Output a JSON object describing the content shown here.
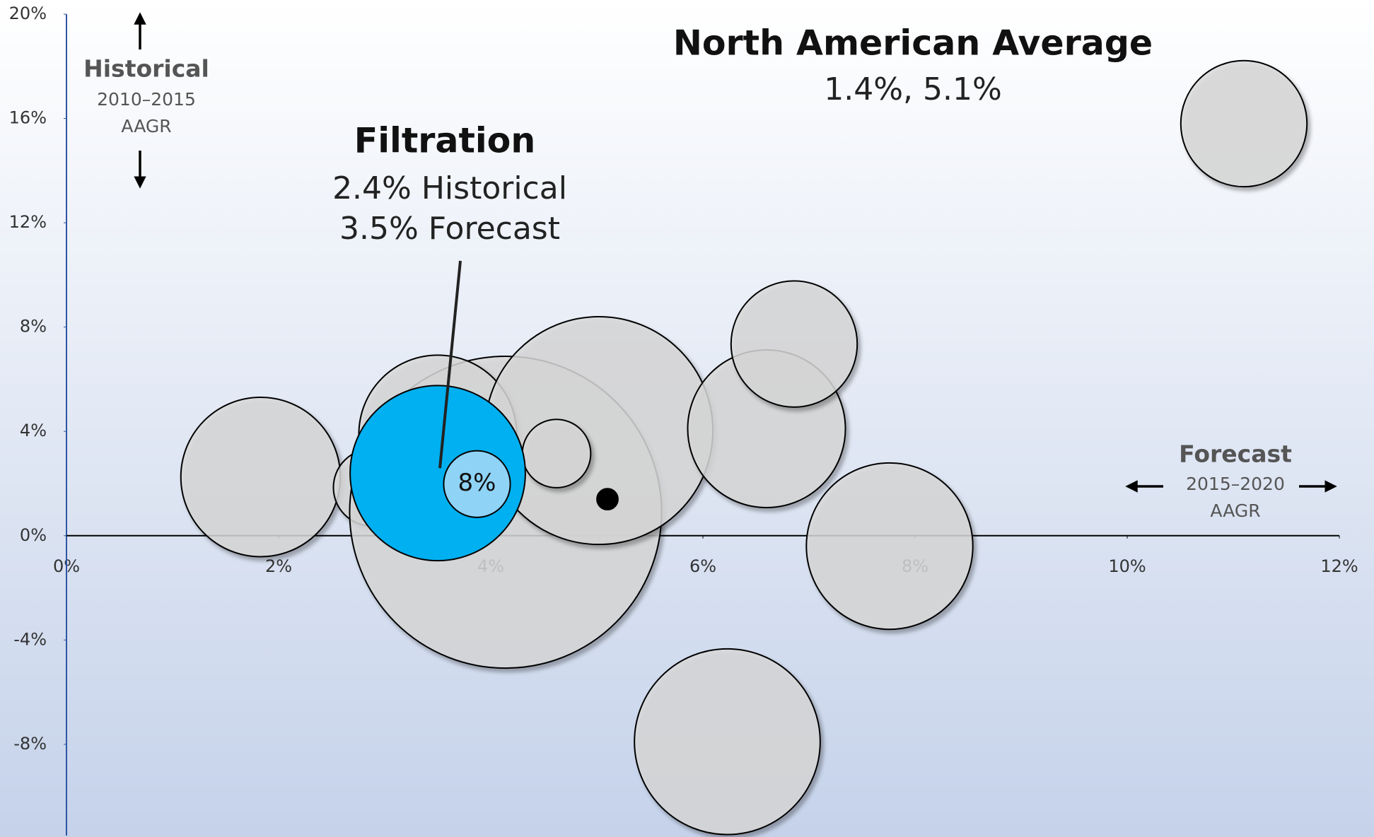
{
  "chart_data": {
    "type": "bubble",
    "xlim": [
      0,
      12
    ],
    "xticks": [
      {
        "value": 0,
        "label": "0%"
      },
      {
        "value": 2,
        "label": "2%"
      },
      {
        "value": 4,
        "label": "4%"
      },
      {
        "value": 6,
        "label": "6%"
      },
      {
        "value": 8,
        "label": "8%"
      },
      {
        "value": 10,
        "label": "10%"
      },
      {
        "value": 12,
        "label": "12%"
      }
    ],
    "ylim": [
      -11.5,
      20
    ],
    "yticks": [
      {
        "value": 20,
        "label": "20%"
      },
      {
        "value": 16,
        "label": "16%"
      },
      {
        "value": 12,
        "label": "12%"
      },
      {
        "value": 8,
        "label": "8%"
      },
      {
        "value": 4,
        "label": "4%"
      },
      {
        "value": 0,
        "label": "0%"
      },
      {
        "value": -4,
        "label": "-4%"
      },
      {
        "value": -8,
        "label": "-8%"
      }
    ],
    "series": [
      {
        "color": "#d9d9d9",
        "x": [
          1.83,
          2.88,
          4.14,
          3.5,
          5.02,
          4.62,
          6.6,
          6.86,
          7.76,
          6.23,
          11.1
        ],
        "values": [
          2.25,
          1.85,
          0.9,
          3.9,
          4.03,
          3.15,
          4.1,
          7.35,
          -0.4,
          -7.9,
          15.8
        ],
        "sizes": [
          9.1,
          4.4,
          17.8,
          9.0,
          13.0,
          3.9,
          9.0,
          7.2,
          9.5,
          10.6,
          7.2
        ]
      },
      {
        "name": "Filtration",
        "color": "#00b0f0",
        "x": [
          3.5
        ],
        "values": [
          2.4
        ],
        "sizes": [
          10.0
        ]
      },
      {
        "label": "8%",
        "color": "#8fd3f7",
        "x": [
          3.87
        ],
        "values": [
          1.98
        ],
        "sizes": [
          3.8
        ]
      },
      {
        "name": "North American Average",
        "color": "#000000",
        "x": [
          5.1
        ],
        "values": [
          1.4
        ],
        "sizes": [
          1.2
        ]
      }
    ],
    "annotations": {
      "average_values": "1.4%, 5.1%",
      "filtration_historical": "2.4% Historical",
      "filtration_forecast": "3.5% Forecast",
      "y_axis_title": "Historical",
      "y_axis_period": "2010–2015",
      "y_axis_unit": "AAGR",
      "x_axis_title": "Forecast",
      "x_axis_period": "2015–2020",
      "x_axis_unit": "AAGR"
    }
  }
}
